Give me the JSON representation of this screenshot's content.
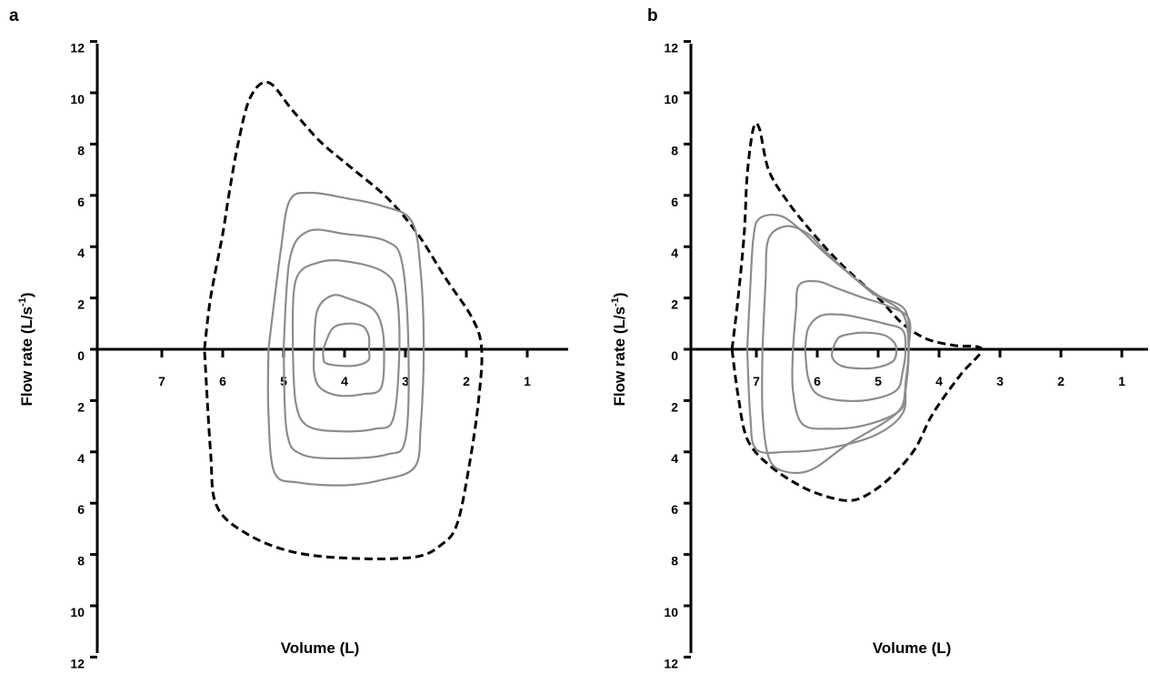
{
  "chart_data": [
    {
      "type": "line",
      "panel_label": "a",
      "xlabel": "Volume (L)",
      "ylabel_main": "Flow rate (L/s",
      "ylabel_sup": "-1",
      "ylabel_close": ")",
      "x_ticks": [
        "7",
        "6",
        "5",
        "4",
        "3",
        "2",
        "1"
      ],
      "y_ticks_up": [
        "12",
        "10",
        "8",
        "6",
        "4",
        "2",
        "0"
      ],
      "y_ticks_down": [
        "2",
        "4",
        "6",
        "8",
        "10",
        "12"
      ],
      "series": [
        {
          "style": "dashed",
          "points": [
            [
              6.3,
              0
            ],
            [
              6.2,
              2.0
            ],
            [
              6.0,
              4.5
            ],
            [
              5.9,
              6.0
            ],
            [
              5.75,
              8.0
            ],
            [
              5.55,
              9.8
            ],
            [
              5.25,
              10.4
            ],
            [
              4.85,
              9.3
            ],
            [
              4.4,
              8.1
            ],
            [
              3.9,
              7.1
            ],
            [
              3.3,
              5.9
            ],
            [
              2.8,
              4.5
            ],
            [
              2.35,
              2.8
            ],
            [
              1.9,
              1.2
            ],
            [
              1.75,
              0
            ],
            [
              1.8,
              -2.0
            ],
            [
              1.95,
              -4.5
            ],
            [
              2.15,
              -6.8
            ],
            [
              2.4,
              -7.6
            ],
            [
              2.85,
              -8.1
            ],
            [
              3.9,
              -8.15
            ],
            [
              4.85,
              -7.9
            ],
            [
              5.6,
              -7.2
            ],
            [
              6.1,
              -6.1
            ],
            [
              6.2,
              -4.0
            ],
            [
              6.3,
              0
            ]
          ]
        },
        {
          "style": "solid",
          "points": [
            [
              5.25,
              0
            ],
            [
              5.05,
              3.8
            ],
            [
              4.9,
              5.8
            ],
            [
              4.55,
              6.1
            ],
            [
              4.0,
              5.9
            ],
            [
              3.4,
              5.6
            ],
            [
              2.9,
              5.0
            ],
            [
              2.75,
              3.0
            ],
            [
              2.7,
              0
            ],
            [
              2.75,
              -3.0
            ],
            [
              2.85,
              -4.6
            ],
            [
              3.4,
              -5.1
            ],
            [
              4.0,
              -5.3
            ],
            [
              4.75,
              -5.2
            ],
            [
              5.15,
              -4.8
            ],
            [
              5.25,
              -2.5
            ],
            [
              5.25,
              0
            ]
          ]
        },
        {
          "style": "solid",
          "points": [
            [
              5.0,
              0
            ],
            [
              4.9,
              3.5
            ],
            [
              4.6,
              4.6
            ],
            [
              4.0,
              4.5
            ],
            [
              3.3,
              4.2
            ],
            [
              3.05,
              3.3
            ],
            [
              2.95,
              0
            ],
            [
              3.0,
              -3.5
            ],
            [
              3.3,
              -4.1
            ],
            [
              4.0,
              -4.25
            ],
            [
              4.7,
              -4.1
            ],
            [
              4.95,
              -3.2
            ],
            [
              5.0,
              0
            ]
          ]
        },
        {
          "style": "solid",
          "points": [
            [
              4.85,
              0
            ],
            [
              4.8,
              2.7
            ],
            [
              4.4,
              3.4
            ],
            [
              3.9,
              3.4
            ],
            [
              3.35,
              3.0
            ],
            [
              3.15,
              2.2
            ],
            [
              3.1,
              0
            ],
            [
              3.2,
              -2.7
            ],
            [
              3.5,
              -3.1
            ],
            [
              4.05,
              -3.2
            ],
            [
              4.6,
              -3.0
            ],
            [
              4.8,
              -2.1
            ],
            [
              4.85,
              0
            ]
          ]
        },
        {
          "style": "solid",
          "points": [
            [
              4.5,
              0
            ],
            [
              4.45,
              1.5
            ],
            [
              4.2,
              2.1
            ],
            [
              3.9,
              1.95
            ],
            [
              3.55,
              1.6
            ],
            [
              3.4,
              1.0
            ],
            [
              3.35,
              0
            ],
            [
              3.4,
              -1.5
            ],
            [
              3.7,
              -1.75
            ],
            [
              4.1,
              -1.8
            ],
            [
              4.4,
              -1.5
            ],
            [
              4.5,
              -0.9
            ],
            [
              4.5,
              0
            ]
          ]
        },
        {
          "style": "solid",
          "points": [
            [
              4.35,
              0
            ],
            [
              4.2,
              0.8
            ],
            [
              3.95,
              1.0
            ],
            [
              3.7,
              0.9
            ],
            [
              3.6,
              0.5
            ],
            [
              3.6,
              0
            ],
            [
              3.6,
              -0.4
            ],
            [
              3.75,
              -0.6
            ],
            [
              4.0,
              -0.65
            ],
            [
              4.3,
              -0.55
            ],
            [
              4.35,
              -0.3
            ],
            [
              4.35,
              0
            ]
          ]
        }
      ]
    },
    {
      "type": "line",
      "panel_label": "b",
      "xlabel": "Volume (L)",
      "ylabel_main": "Flow rate (L/s",
      "ylabel_sup": "-1",
      "ylabel_close": ")",
      "x_ticks": [
        "7",
        "6",
        "5",
        "4",
        "3",
        "2",
        "1"
      ],
      "y_ticks_up": [
        "12",
        "10",
        "8",
        "6",
        "4",
        "2",
        "0"
      ],
      "y_ticks_down": [
        "2",
        "4",
        "6",
        "8",
        "10",
        "12"
      ],
      "series": [
        {
          "style": "dashed",
          "points": [
            [
              7.4,
              0
            ],
            [
              7.3,
              2.0
            ],
            [
              7.2,
              4.5
            ],
            [
              7.15,
              6.8
            ],
            [
              7.05,
              8.6
            ],
            [
              6.95,
              8.6
            ],
            [
              6.8,
              7.0
            ],
            [
              6.5,
              5.8
            ],
            [
              6.1,
              4.6
            ],
            [
              5.6,
              3.3
            ],
            [
              5.0,
              2.0
            ],
            [
              4.6,
              1.0
            ],
            [
              4.2,
              0.4
            ],
            [
              3.75,
              0.15
            ],
            [
              3.3,
              0
            ],
            [
              3.65,
              -1.0
            ],
            [
              4.1,
              -2.5
            ],
            [
              4.4,
              -3.9
            ],
            [
              4.8,
              -5.0
            ],
            [
              5.2,
              -5.7
            ],
            [
              5.5,
              -5.9
            ],
            [
              5.9,
              -5.7
            ],
            [
              6.3,
              -5.3
            ],
            [
              6.8,
              -4.5
            ],
            [
              7.15,
              -3.5
            ],
            [
              7.3,
              -1.8
            ],
            [
              7.4,
              0
            ]
          ]
        },
        {
          "style": "solid",
          "points": [
            [
              7.15,
              0
            ],
            [
              7.1,
              2.4
            ],
            [
              7.05,
              4.3
            ],
            [
              6.95,
              5.1
            ],
            [
              6.6,
              5.2
            ],
            [
              6.25,
              4.6
            ],
            [
              5.9,
              3.8
            ],
            [
              5.5,
              3.0
            ],
            [
              5.1,
              2.2
            ],
            [
              4.6,
              1.4
            ],
            [
              4.5,
              0
            ],
            [
              4.55,
              -1.3
            ],
            [
              4.6,
              -2.5
            ],
            [
              5.05,
              -3.35
            ],
            [
              5.8,
              -3.85
            ],
            [
              6.5,
              -4.0
            ],
            [
              7.0,
              -3.9
            ],
            [
              7.1,
              -2.6
            ],
            [
              7.15,
              0
            ]
          ]
        },
        {
          "style": "solid",
          "points": [
            [
              6.9,
              0
            ],
            [
              6.85,
              2.6
            ],
            [
              6.8,
              4.3
            ],
            [
              6.5,
              4.8
            ],
            [
              6.15,
              4.5
            ],
            [
              5.9,
              3.9
            ],
            [
              5.5,
              3.0
            ],
            [
              5.0,
              2.1
            ],
            [
              4.55,
              1.5
            ],
            [
              4.5,
              0
            ],
            [
              4.55,
              -1.5
            ],
            [
              4.7,
              -2.5
            ],
            [
              5.5,
              -3.7
            ],
            [
              6.1,
              -4.7
            ],
            [
              6.55,
              -4.75
            ],
            [
              6.8,
              -4.2
            ],
            [
              6.9,
              -2.4
            ],
            [
              6.9,
              0
            ]
          ]
        },
        {
          "style": "solid",
          "points": [
            [
              6.4,
              0
            ],
            [
              6.35,
              1.5
            ],
            [
              6.3,
              2.5
            ],
            [
              6.0,
              2.65
            ],
            [
              5.7,
              2.4
            ],
            [
              5.3,
              2.05
            ],
            [
              4.85,
              1.7
            ],
            [
              4.5,
              1.2
            ],
            [
              4.5,
              0
            ],
            [
              4.55,
              -1.6
            ],
            [
              4.65,
              -2.4
            ],
            [
              5.2,
              -2.95
            ],
            [
              5.8,
              -3.1
            ],
            [
              6.25,
              -2.9
            ],
            [
              6.4,
              -1.6
            ],
            [
              6.4,
              0
            ]
          ]
        },
        {
          "style": "solid",
          "points": [
            [
              6.2,
              0
            ],
            [
              6.15,
              0.8
            ],
            [
              5.95,
              1.3
            ],
            [
              5.6,
              1.35
            ],
            [
              5.25,
              1.2
            ],
            [
              4.9,
              1.0
            ],
            [
              4.6,
              0.75
            ],
            [
              4.55,
              0
            ],
            [
              4.6,
              -0.9
            ],
            [
              4.7,
              -1.6
            ],
            [
              5.1,
              -1.95
            ],
            [
              5.6,
              -2.0
            ],
            [
              6.0,
              -1.75
            ],
            [
              6.15,
              -1.1
            ],
            [
              6.2,
              0
            ]
          ]
        },
        {
          "style": "solid",
          "points": [
            [
              5.75,
              0
            ],
            [
              5.65,
              0.45
            ],
            [
              5.45,
              0.6
            ],
            [
              5.2,
              0.65
            ],
            [
              4.9,
              0.55
            ],
            [
              4.75,
              0.3
            ],
            [
              4.7,
              0
            ],
            [
              4.75,
              -0.45
            ],
            [
              5.0,
              -0.7
            ],
            [
              5.3,
              -0.75
            ],
            [
              5.6,
              -0.65
            ],
            [
              5.75,
              -0.35
            ],
            [
              5.75,
              0
            ]
          ]
        }
      ]
    }
  ],
  "colors": {
    "axis": "#000000",
    "dashed_curve": "#000000",
    "solid_curve": "#8c8c8c"
  }
}
